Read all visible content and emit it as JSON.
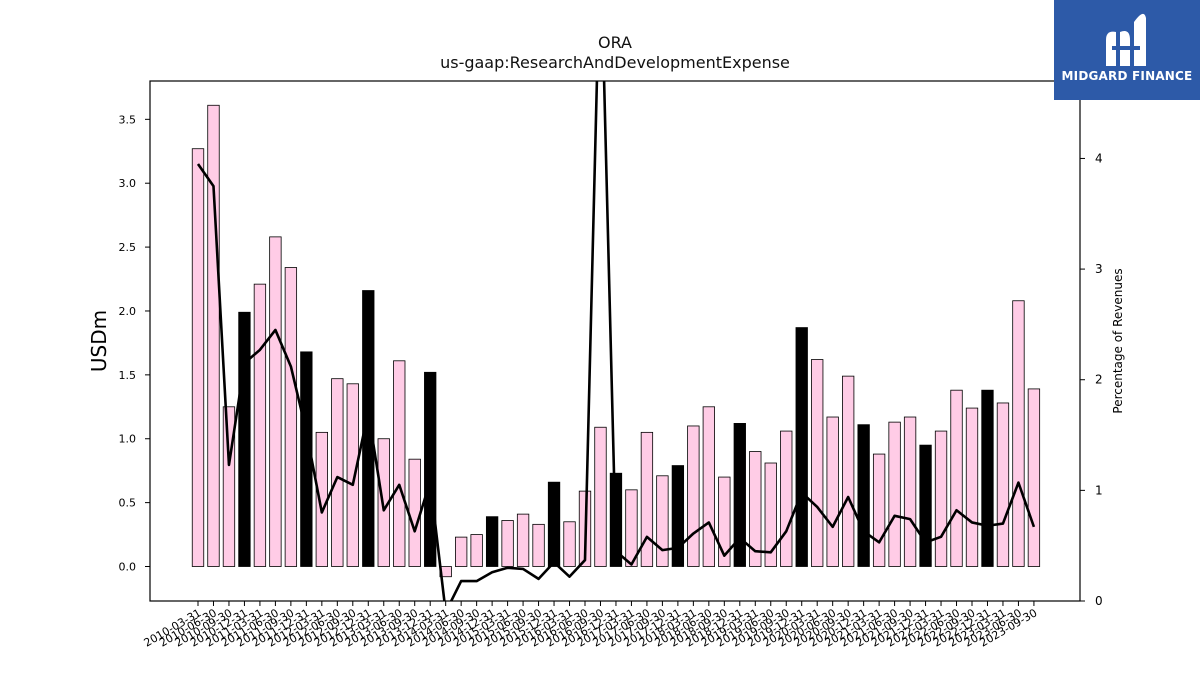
{
  "title": "ORA",
  "subtitle": "us-gaap:ResearchAndDevelopmentExpense",
  "logo": {
    "text": "MIDGARD FINANCE",
    "background": "#2d5aa8"
  },
  "chart_data": {
    "type": "bar",
    "ylabel": "USDm",
    "y2label": "Percentage of Revenues",
    "ylim": [
      -0.27,
      3.8
    ],
    "y2lim": [
      0,
      4.7
    ],
    "yticks": [
      "0.0",
      "0.5",
      "1.0",
      "1.5",
      "2.0",
      "2.5",
      "3.0",
      "3.5"
    ],
    "y2ticks": [
      "0",
      "1",
      "2",
      "3",
      "4"
    ],
    "grid": false,
    "colors": {
      "quarter": "#ffcce6",
      "fiscal_year": "#000000",
      "line": "#000000"
    },
    "categories": [
      "2010-03-31",
      "2010-06-30",
      "2010-09-30",
      "2010-12-31",
      "2011-03-31",
      "2011-06-30",
      "2011-09-30",
      "2011-12-31",
      "2012-03-31",
      "2012-06-30",
      "2012-09-30",
      "2012-12-31",
      "2013-03-31",
      "2013-06-30",
      "2013-09-30",
      "2013-12-31",
      "2014-03-31",
      "2014-06-30",
      "2014-09-30",
      "2014-12-31",
      "2015-03-31",
      "2015-06-30",
      "2015-09-30",
      "2015-12-31",
      "2016-03-31",
      "2016-06-30",
      "2016-09-30",
      "2016-12-31",
      "2017-03-31",
      "2017-06-30",
      "2017-09-30",
      "2017-12-31",
      "2018-03-31",
      "2018-06-30",
      "2018-09-30",
      "2018-12-31",
      "2019-03-31",
      "2019-06-30",
      "2019-09-30",
      "2019-12-31",
      "2020-03-31",
      "2020-06-30",
      "2020-09-30",
      "2020-12-31",
      "2021-03-31",
      "2021-06-30",
      "2021-09-30",
      "2021-12-31",
      "2022-03-31",
      "2022-06-30",
      "2022-09-30",
      "2022-12-31",
      "2023-03-31",
      "2023-06-30",
      "2023-09-30"
    ],
    "bar_values": [
      3.27,
      3.61,
      1.25,
      1.99,
      2.21,
      2.58,
      2.34,
      1.68,
      1.05,
      1.47,
      1.43,
      2.16,
      1.0,
      1.61,
      0.84,
      1.52,
      -0.08,
      0.23,
      0.25,
      0.39,
      0.36,
      0.41,
      0.33,
      0.66,
      0.35,
      0.59,
      1.09,
      0.73,
      0.6,
      1.05,
      0.71,
      0.79,
      1.1,
      1.25,
      0.7,
      1.12,
      0.9,
      0.81,
      1.06,
      1.87,
      1.62,
      1.17,
      1.49,
      1.11,
      0.88,
      1.13,
      1.17,
      0.95,
      1.06,
      1.38,
      1.24,
      1.38,
      1.28,
      2.08,
      1.39
    ],
    "fiscal_year_flags": [
      false,
      false,
      false,
      true,
      false,
      false,
      false,
      true,
      false,
      false,
      false,
      true,
      false,
      false,
      false,
      true,
      false,
      false,
      false,
      true,
      false,
      false,
      false,
      true,
      false,
      false,
      false,
      true,
      false,
      false,
      false,
      true,
      false,
      false,
      false,
      true,
      false,
      false,
      false,
      true,
      false,
      false,
      false,
      true,
      false,
      false,
      false,
      true,
      false,
      false,
      false,
      true,
      false,
      false,
      false
    ],
    "line_values": [
      3.95,
      3.75,
      1.23,
      2.15,
      2.27,
      2.45,
      2.12,
      1.53,
      0.8,
      1.12,
      1.05,
      1.71,
      0.82,
      1.05,
      0.63,
      1.08,
      -0.1,
      0.18,
      0.18,
      0.26,
      0.3,
      0.29,
      0.2,
      0.35,
      0.22,
      0.37,
      6.0,
      0.45,
      0.33,
      0.58,
      0.46,
      0.48,
      0.61,
      0.71,
      0.41,
      0.57,
      0.45,
      0.44,
      0.63,
      0.98,
      0.85,
      0.67,
      0.94,
      0.63,
      0.53,
      0.77,
      0.74,
      0.53,
      0.58,
      0.82,
      0.71,
      0.68,
      0.7,
      1.07,
      0.67
    ]
  }
}
